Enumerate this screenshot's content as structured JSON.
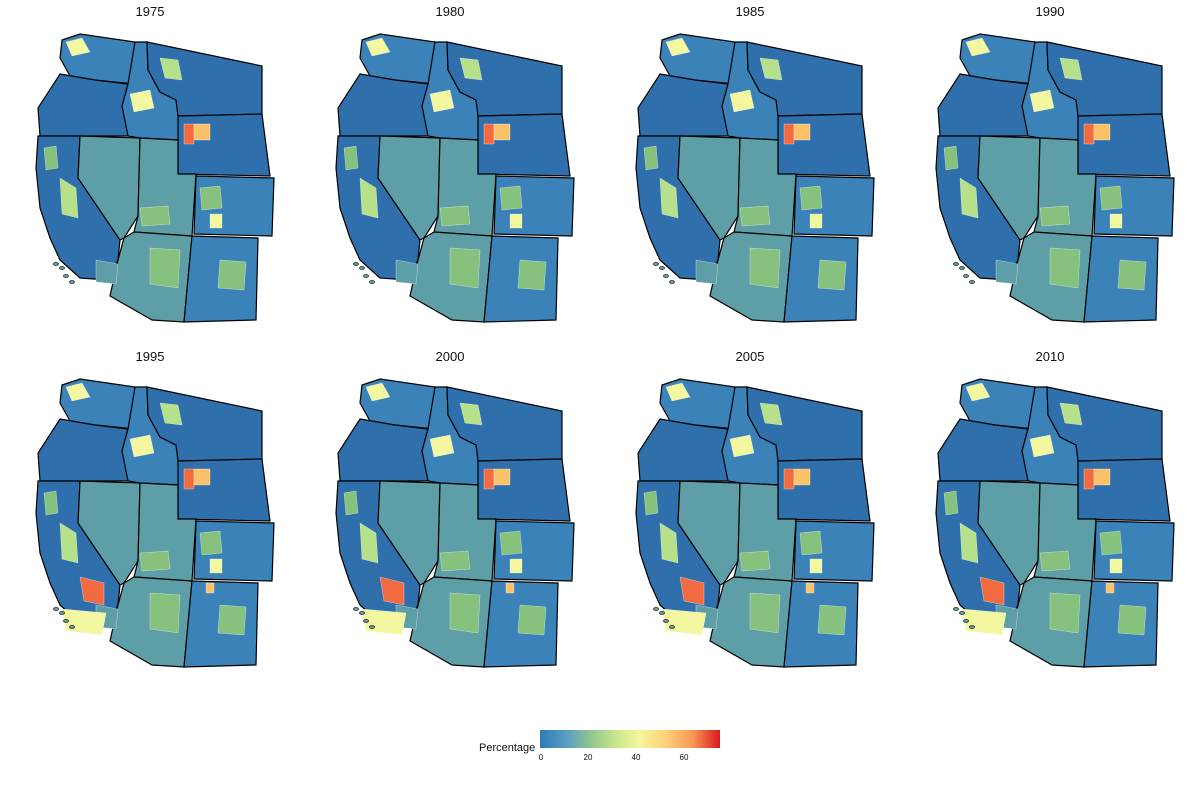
{
  "panels": [
    {
      "year": "1975"
    },
    {
      "year": "1980"
    },
    {
      "year": "1985"
    },
    {
      "year": "1990"
    },
    {
      "year": "1995"
    },
    {
      "year": "2000"
    },
    {
      "year": "2005"
    },
    {
      "year": "2010"
    }
  ],
  "legend": {
    "title": "Percentage",
    "ticks": [
      "0",
      "20",
      "40",
      "60"
    ],
    "colors": [
      "#2c7bb6",
      "#5a9ec5",
      "#8fc58e",
      "#c8e68c",
      "#f5f79d",
      "#fdd079",
      "#f89655",
      "#d7191c"
    ]
  },
  "map_colors": {
    "dark_blue": "#2f6fac",
    "mid_blue": "#3a82b8",
    "teal": "#5e9ea6",
    "green": "#86c27d",
    "light_green": "#b7e08a",
    "yellow": "#f3f7a0",
    "orange": "#fbc26a",
    "red_orange": "#f26a40"
  }
}
